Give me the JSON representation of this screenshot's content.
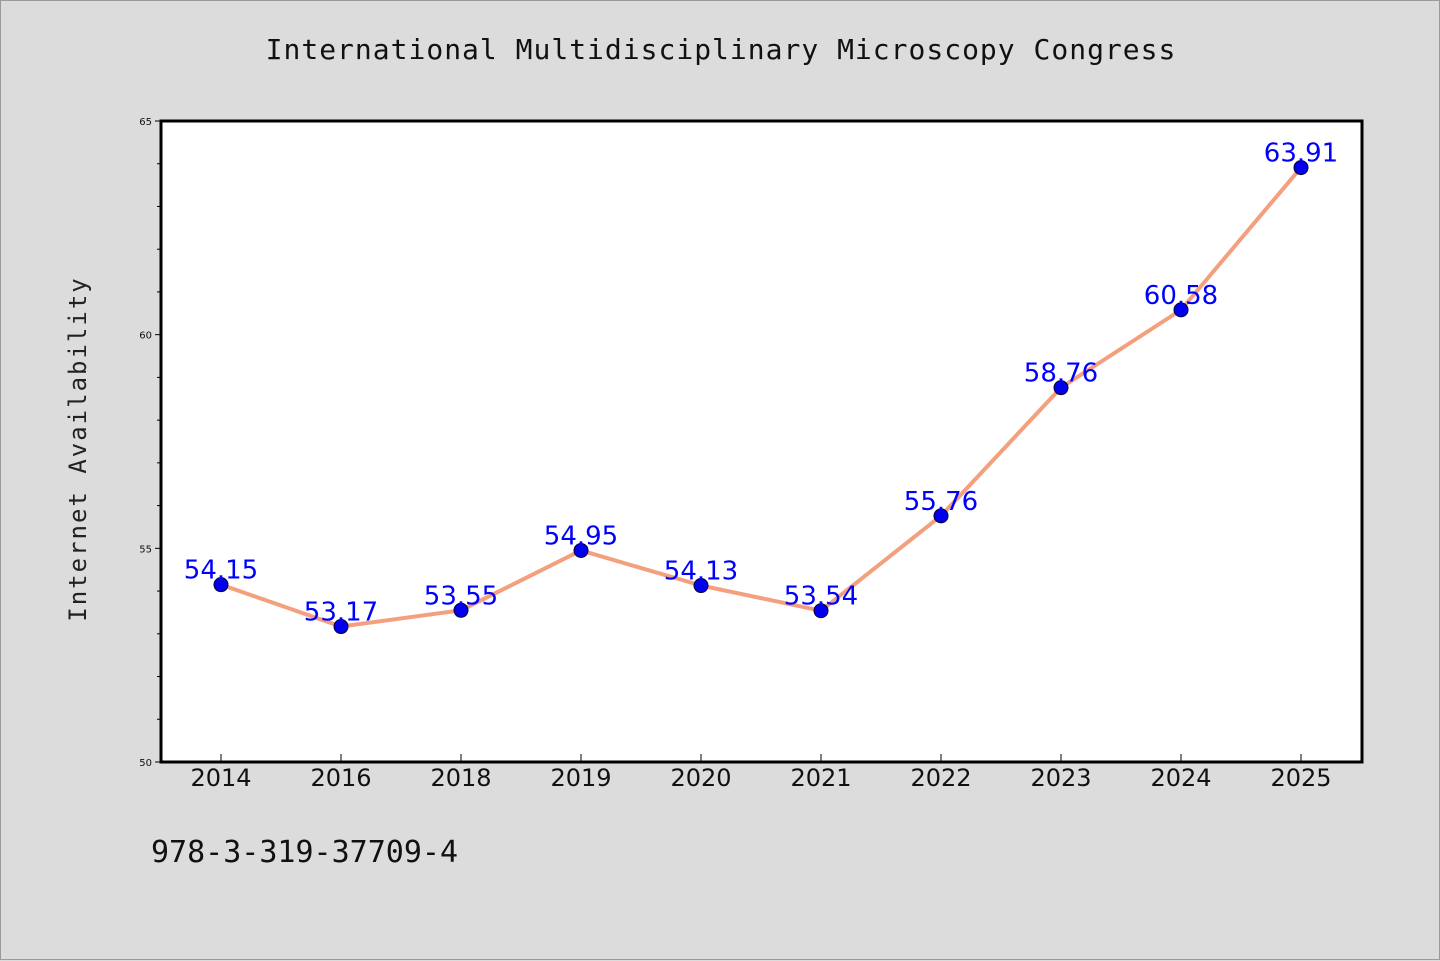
{
  "chart_data": {
    "type": "line",
    "title": "International Multidisciplinary Microscopy Congress",
    "xlabel": "",
    "ylabel": "Internet Availability",
    "categories": [
      "2014",
      "2016",
      "2018",
      "2019",
      "2020",
      "2021",
      "2022",
      "2023",
      "2024",
      "2025"
    ],
    "series": [
      {
        "values": [
          54.15,
          53.17,
          53.55,
          54.95,
          54.13,
          53.54,
          55.76,
          58.76,
          60.58,
          63.91
        ],
        "data_labels": [
          "54.15",
          "53.17",
          "53.55",
          "54.95",
          "54.13",
          "53.54",
          "55.76",
          "58.76",
          "60.58",
          "63.91"
        ],
        "line_color": "#f4a07e",
        "marker_color": "#0000ee"
      }
    ],
    "ylim": [
      50,
      65
    ],
    "y_ticks": [
      "50",
      "55",
      "60",
      "65"
    ],
    "grid": false,
    "legend": "none"
  },
  "footer_text": "978-3-319-37709-4",
  "colors": {
    "background": "#dcdcdc",
    "plot_area": "#ffffff",
    "data_label": "#0000ff"
  }
}
